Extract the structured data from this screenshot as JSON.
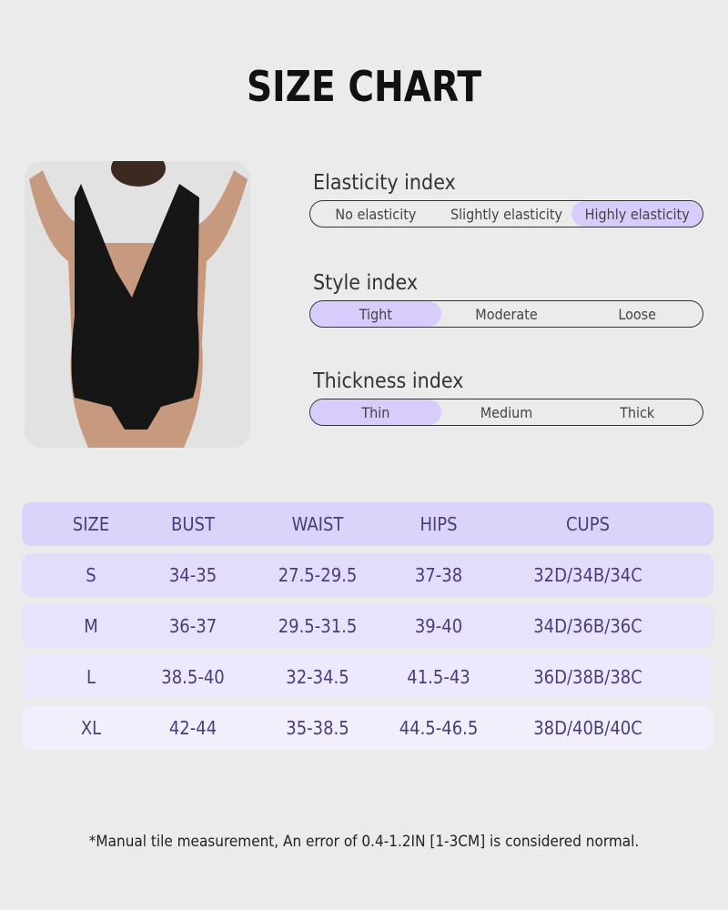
{
  "title": "SIZE CHART",
  "indices": [
    {
      "label": "Elasticity index",
      "options": [
        "No elasticity",
        "Slightly elasticity",
        "Highly elasticity"
      ],
      "selected": 2
    },
    {
      "label": "Style index",
      "options": [
        "Tight",
        "Moderate",
        "Loose"
      ],
      "selected": 0
    },
    {
      "label": "Thickness index",
      "options": [
        "Thin",
        "Medium",
        "Thick"
      ],
      "selected": 0
    }
  ],
  "table": {
    "headers": [
      "SIZE",
      "BUST",
      "WAIST",
      "HIPS",
      "CUPS"
    ],
    "rows": [
      [
        "S",
        "34-35",
        "27.5-29.5",
        "37-38",
        "32D/34B/34C"
      ],
      [
        "M",
        "36-37",
        "29.5-31.5",
        "39-40",
        "34D/36B/36C"
      ],
      [
        "L",
        "38.5-40",
        "32-34.5",
        "41.5-43",
        "36D/38B/38C"
      ],
      [
        "XL",
        "42-44",
        "35-38.5",
        "44.5-46.5",
        "38D/40B/40C"
      ]
    ]
  },
  "colors": {
    "accent": "#d7ccfb",
    "header_bg": "#dcd3f8",
    "table_text": "#4b3c7a"
  },
  "note": "*Manual tile measurement, An error of 0.4-1.2IN [1-3CM] is considered normal."
}
